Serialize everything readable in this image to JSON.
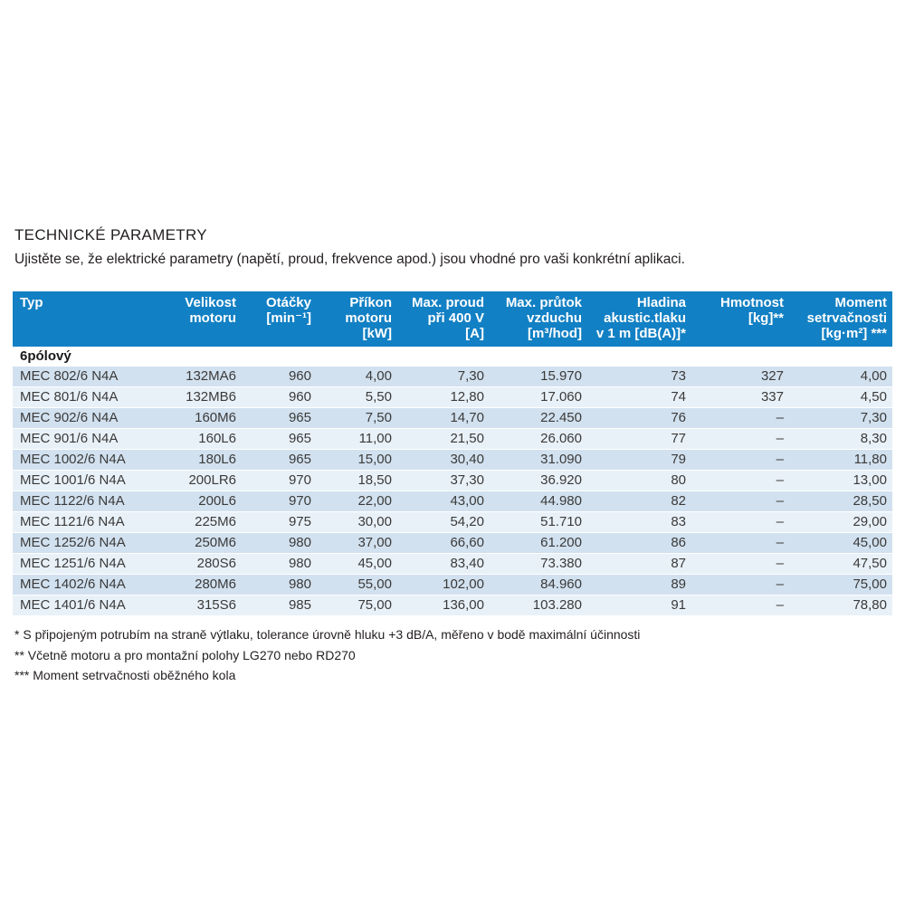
{
  "page": {
    "title": "TECHNICKÉ PARAMETRY",
    "subtitle": "Ujistěte se, že elektrické parametry (napětí, proud, frekvence apod.) jsou vhodné pro vaši konkrétní aplikaci."
  },
  "table": {
    "section_label": "6pólový",
    "columns": [
      {
        "id": "typ",
        "lines": [
          "Typ"
        ]
      },
      {
        "id": "velikost-motoru",
        "lines": [
          "Velikost",
          "motoru"
        ]
      },
      {
        "id": "otacky",
        "lines": [
          "Otáčky",
          "[min⁻¹]"
        ]
      },
      {
        "id": "prikon-motoru",
        "lines": [
          "Příkon",
          "motoru",
          "[kW]"
        ]
      },
      {
        "id": "max-proud",
        "lines": [
          "Max. proud",
          "při 400 V",
          "[A]"
        ]
      },
      {
        "id": "max-prutok-vzduchu",
        "lines": [
          "Max. průtok",
          "vzduchu",
          "[m³/hod]"
        ]
      },
      {
        "id": "hladina-akust-tlaku",
        "lines": [
          "Hladina",
          "akustic.tlaku",
          "v 1 m [dB(A)]*"
        ]
      },
      {
        "id": "hmotnost",
        "lines": [
          "Hmotnost",
          "[kg]**"
        ]
      },
      {
        "id": "moment-setrvacnosti",
        "lines": [
          "Moment",
          "setrvačnosti",
          "[kg·m²] ***"
        ]
      }
    ],
    "rows": [
      [
        "MEC 802/6 N4A",
        "132MA6",
        "960",
        "4,00",
        "7,30",
        "15.970",
        "73",
        "327",
        "4,00"
      ],
      [
        "MEC 801/6 N4A",
        "132MB6",
        "960",
        "5,50",
        "12,80",
        "17.060",
        "74",
        "337",
        "4,50"
      ],
      [
        "MEC 902/6 N4A",
        "160M6",
        "965",
        "7,50",
        "14,70",
        "22.450",
        "76",
        "–",
        "7,30"
      ],
      [
        "MEC 901/6 N4A",
        "160L6",
        "965",
        "11,00",
        "21,50",
        "26.060",
        "77",
        "–",
        "8,30"
      ],
      [
        "MEC 1002/6 N4A",
        "180L6",
        "965",
        "15,00",
        "30,40",
        "31.090",
        "79",
        "–",
        "11,80"
      ],
      [
        "MEC 1001/6 N4A",
        "200LR6",
        "970",
        "18,50",
        "37,30",
        "36.920",
        "80",
        "–",
        "13,00"
      ],
      [
        "MEC 1122/6 N4A",
        "200L6",
        "970",
        "22,00",
        "43,00",
        "44.980",
        "82",
        "–",
        "28,50"
      ],
      [
        "MEC 1121/6 N4A",
        "225M6",
        "975",
        "30,00",
        "54,20",
        "51.710",
        "83",
        "–",
        "29,00"
      ],
      [
        "MEC 1252/6 N4A",
        "250M6",
        "980",
        "37,00",
        "66,60",
        "61.200",
        "86",
        "–",
        "45,00"
      ],
      [
        "MEC 1251/6 N4A",
        "280S6",
        "980",
        "45,00",
        "83,40",
        "73.380",
        "87",
        "–",
        "47,50"
      ],
      [
        "MEC 1402/6 N4A",
        "280M6",
        "980",
        "55,00",
        "102,00",
        "84.960",
        "89",
        "–",
        "75,00"
      ],
      [
        "MEC 1401/6 N4A",
        "315S6",
        "985",
        "75,00",
        "136,00",
        "103.280",
        "91",
        "–",
        "78,80"
      ]
    ],
    "colors": {
      "header_bg": "#1280c4",
      "header_text": "#ffffff",
      "row_odd_bg": "#d2e1ef",
      "row_even_bg": "#e9f1f8"
    }
  },
  "footnotes": [
    "* S připojeným potrubím na straně výtlaku, tolerance úrovně hluku +3 dB/A, měřeno v bodě maximální účinnosti",
    "** Včetně motoru a pro montažní polohy LG270 nebo RD270",
    "*** Moment setrvačnosti oběžného kola"
  ]
}
